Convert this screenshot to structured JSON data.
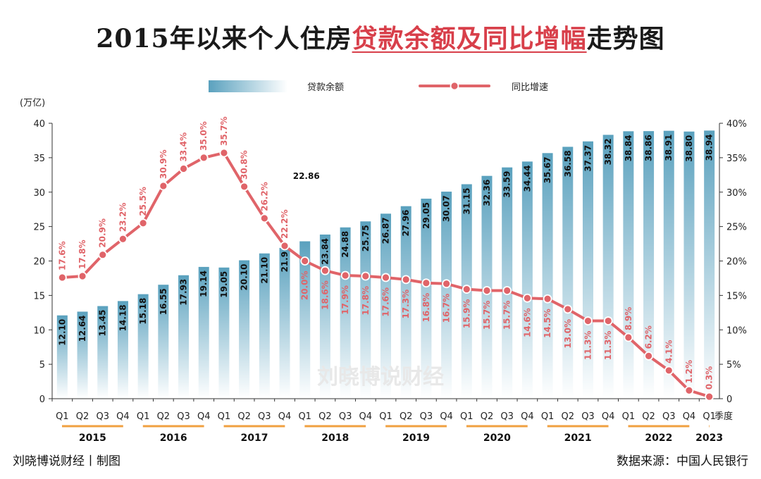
{
  "title": {
    "part1": "2015年以来个人住房",
    "highlight": "贷款余额及同比增幅",
    "part2": "走势图"
  },
  "footer": {
    "credit": "刘晓博说财经丨制图",
    "source": "数据来源：中国人民银行"
  },
  "watermark": "刘晓博说财经",
  "colors": {
    "bar_top": "#5da3bf",
    "line": "#e06469",
    "line_label": "#e06469",
    "year_underline": "#f0a040"
  },
  "chart_data": {
    "type": "bar+line",
    "categories": [
      "Q1",
      "Q2",
      "Q3",
      "Q4",
      "Q1",
      "Q2",
      "Q3",
      "Q4",
      "Q1",
      "Q2",
      "Q3",
      "Q4",
      "Q1",
      "Q2",
      "Q3",
      "Q4",
      "Q1",
      "Q2",
      "Q3",
      "Q4",
      "Q1",
      "Q2",
      "Q3",
      "Q4",
      "Q1",
      "Q2",
      "Q3",
      "Q4",
      "Q1",
      "Q2",
      "Q3",
      "Q4",
      "Q1"
    ],
    "x_axis_suffix": "季度",
    "years": [
      {
        "label": "2015",
        "count": 4
      },
      {
        "label": "2016",
        "count": 4
      },
      {
        "label": "2017",
        "count": 4
      },
      {
        "label": "2018",
        "count": 4
      },
      {
        "label": "2019",
        "count": 4
      },
      {
        "label": "2020",
        "count": 4
      },
      {
        "label": "2021",
        "count": 4
      },
      {
        "label": "2022",
        "count": 4
      },
      {
        "label": "2023",
        "count": 1
      }
    ],
    "series": [
      {
        "name": "贷款余额",
        "type": "bar",
        "axis": "left",
        "values": [
          12.1,
          12.64,
          13.45,
          14.18,
          15.18,
          16.55,
          17.93,
          19.14,
          19.05,
          20.1,
          21.1,
          21.9,
          22.86,
          23.84,
          24.88,
          25.75,
          26.87,
          27.96,
          29.05,
          30.07,
          31.15,
          32.36,
          33.59,
          34.44,
          35.67,
          36.58,
          37.37,
          38.32,
          38.84,
          38.86,
          38.91,
          38.8,
          38.94
        ],
        "labels": [
          "12.10",
          "12.64",
          "13.45",
          "14.18",
          "15.18",
          "16.55",
          "17.93",
          "19.14",
          "19.05",
          "20.10",
          "21.10",
          "21.9",
          "22.86",
          "23.84",
          "24.88",
          "25.75",
          "26.87",
          "27.96",
          "29.05",
          "30.07",
          "31.15",
          "32.36",
          "33.59",
          "34.44",
          "35.67",
          "36.58",
          "37.37",
          "38.32",
          "38.84",
          "38.86",
          "38.91",
          "38.80",
          "38.94"
        ]
      },
      {
        "name": "同比增速",
        "type": "line",
        "axis": "right",
        "values": [
          17.6,
          17.8,
          20.9,
          23.2,
          25.5,
          30.9,
          33.4,
          35.0,
          35.7,
          30.8,
          26.2,
          22.2,
          20.0,
          18.6,
          17.9,
          17.8,
          17.6,
          17.3,
          16.8,
          16.7,
          15.9,
          15.7,
          15.7,
          14.6,
          14.5,
          13.0,
          11.3,
          11.3,
          8.9,
          6.2,
          4.1,
          1.2,
          0.3
        ],
        "labels": [
          "17.6%",
          "17.8%",
          "20.9%",
          "23.2%",
          "25.5%",
          "30.9%",
          "33.4%",
          "35.0%",
          "35.7%",
          "30.8%",
          "26.2%",
          "22.2%",
          "20.0%",
          "18.6%",
          "17.9%",
          "17.8%",
          "17.6%",
          "17.3%",
          "16.8%",
          "16.7%",
          "15.9%",
          "15.7%",
          "15.7%",
          "14.6%",
          "14.5%",
          "13.0%",
          "11.3%",
          "11.3%",
          "8.9%",
          "6.2%",
          "4.1%",
          "1.2%",
          "0.3%"
        ]
      }
    ],
    "left_axis": {
      "unit": "(万亿)",
      "range": [
        0,
        40
      ],
      "ticks": [
        "0",
        "5",
        "10",
        "15",
        "20",
        "25",
        "30",
        "35",
        "40"
      ]
    },
    "right_axis": {
      "range": [
        0,
        40
      ],
      "ticks": [
        "0",
        "5%",
        "10%",
        "15%",
        "20%",
        "25%",
        "30%",
        "35%",
        "40%"
      ]
    },
    "legend": [
      "贷款余额",
      "同比增速"
    ],
    "legend_position": "top",
    "grid": false
  }
}
